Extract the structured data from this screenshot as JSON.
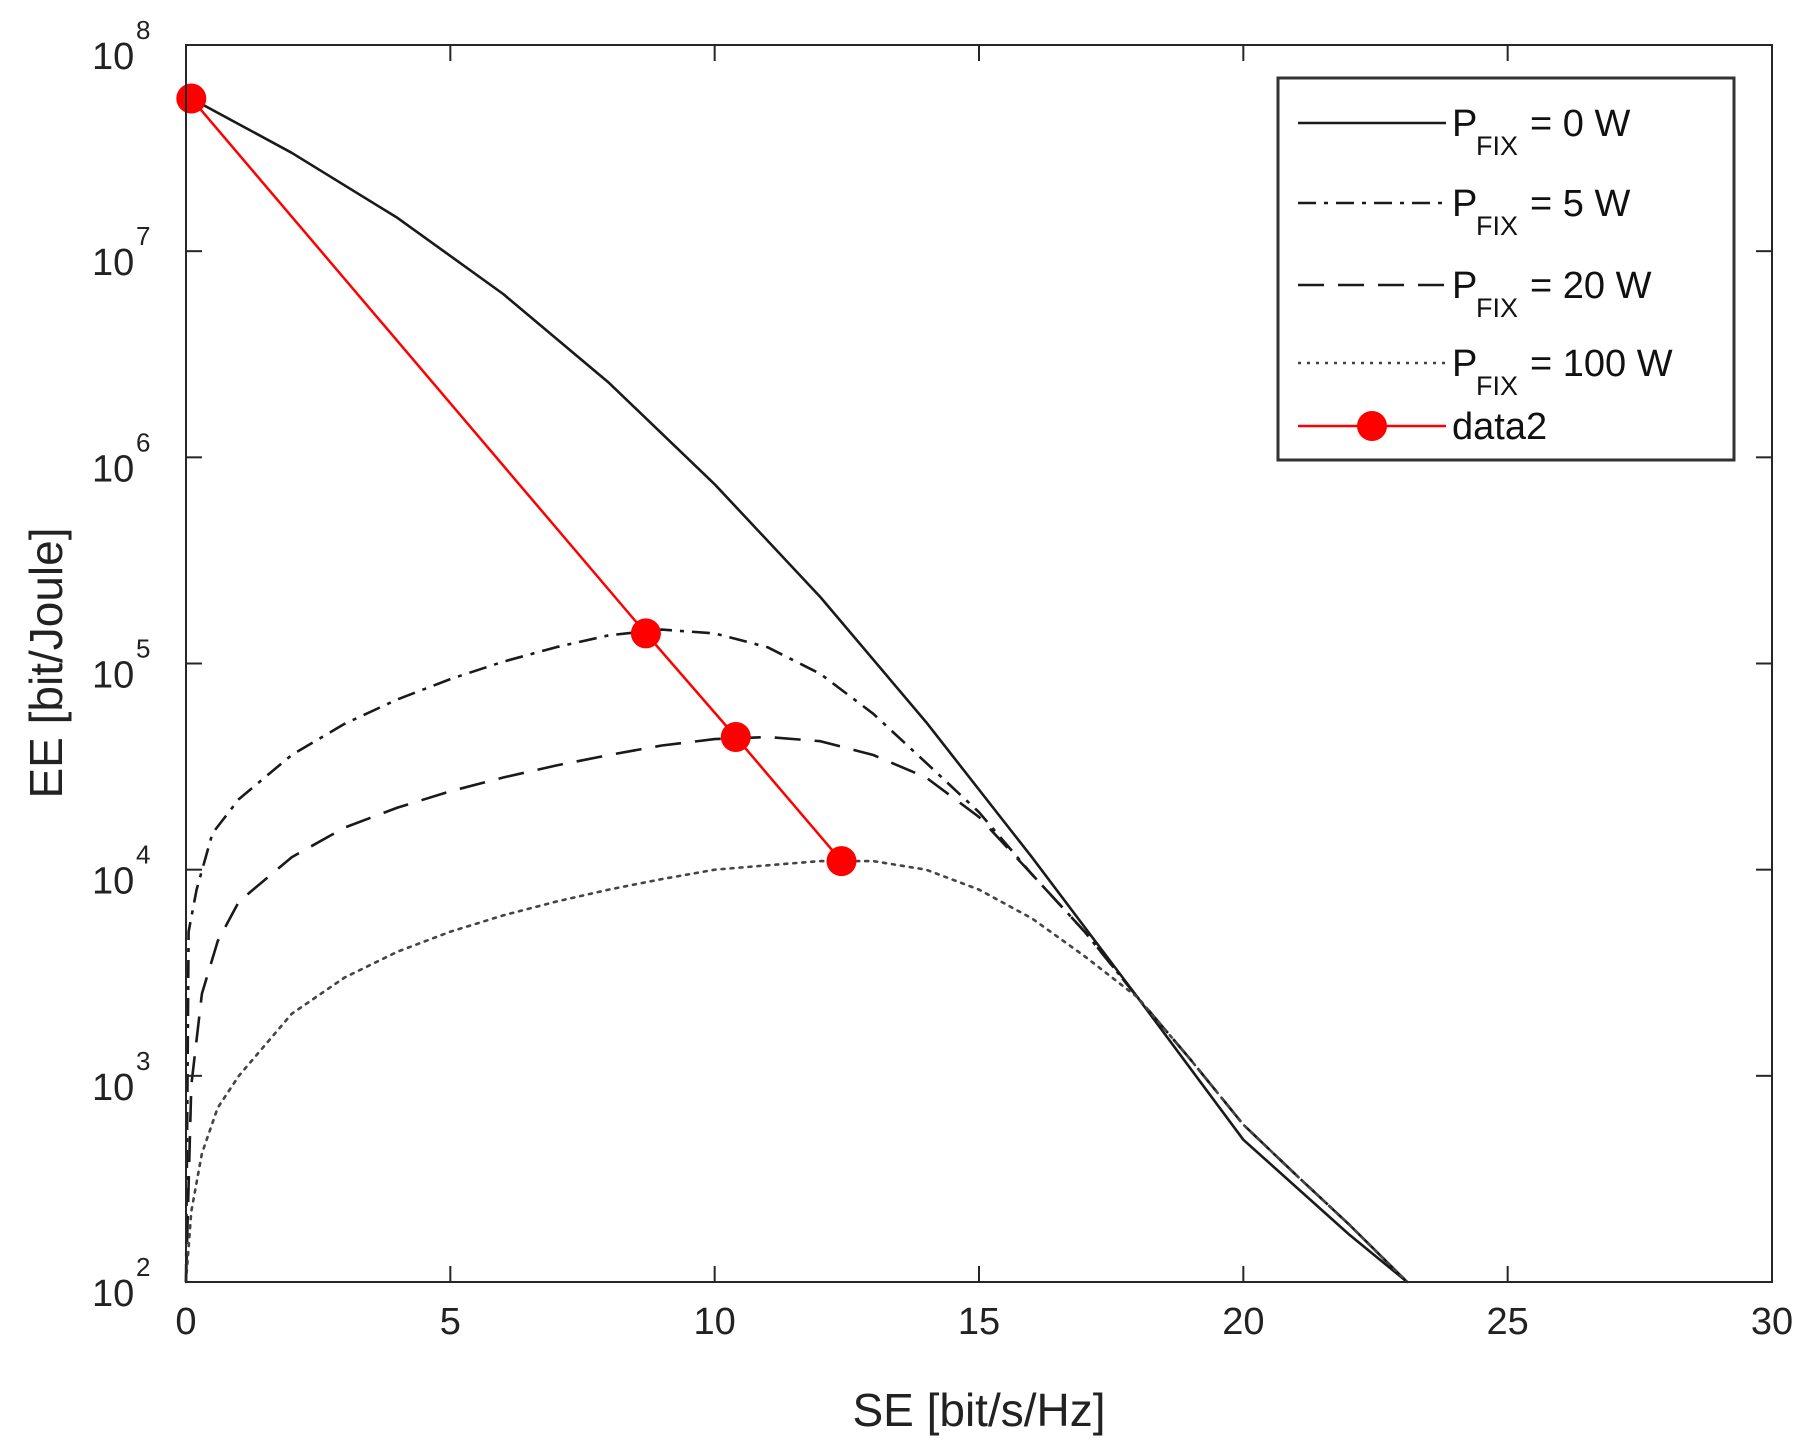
{
  "chart_data": {
    "type": "line",
    "title": "",
    "xlabel": "SE [bit/s/Hz]",
    "ylabel": "EE [bit/Joule]",
    "xlim": [
      0,
      30
    ],
    "ylim": [
      100,
      100000000
    ],
    "yscale": "log",
    "x_ticks": [
      0,
      5,
      10,
      15,
      20,
      25,
      30
    ],
    "y_ticks": [
      {
        "value": 100,
        "base": "10",
        "exp": "2"
      },
      {
        "value": 1000,
        "base": "10",
        "exp": "3"
      },
      {
        "value": 10000,
        "base": "10",
        "exp": "4"
      },
      {
        "value": 100000,
        "base": "10",
        "exp": "5"
      },
      {
        "value": 1000000,
        "base": "10",
        "exp": "6"
      },
      {
        "value": 10000000,
        "base": "10",
        "exp": "7"
      },
      {
        "value": 100000000,
        "base": "10",
        "exp": "8"
      }
    ],
    "grid": false,
    "legend_position": "top-right",
    "series": [
      {
        "name": "P_FIX = 0 W",
        "legend": {
          "main": "P",
          "sub": "FIX",
          "rest": " = 0 W"
        },
        "color": "#1a1a1a",
        "style": "solid",
        "x": [
          0.1,
          2,
          4,
          6,
          8,
          10,
          12,
          14,
          16,
          18,
          20,
          22,
          23.1
        ],
        "y": [
          55000000,
          30000000,
          14500000,
          6200000,
          2300000,
          740000,
          210000,
          52000,
          11500,
          2400,
          490,
          170,
          100
        ]
      },
      {
        "name": "P_FIX = 5 W",
        "legend": {
          "main": "P",
          "sub": "FIX",
          "rest": " = 5 W"
        },
        "color": "#1a1a1a",
        "style": "dashdot",
        "x": [
          0,
          0.05,
          0.2,
          0.5,
          1,
          2,
          3,
          4,
          5,
          6,
          7,
          8,
          9,
          10,
          11,
          12,
          13,
          14,
          15,
          16,
          17,
          18,
          19,
          20,
          21,
          22,
          23.1
        ],
        "y": [
          100,
          5000,
          8000,
          15000,
          22000,
          36000,
          51000,
          67000,
          84000,
          102000,
          120000,
          137000,
          146000,
          140000,
          120000,
          89000,
          57000,
          33000,
          19000,
          9500,
          5000,
          2400,
          1200,
          580,
          330,
          190,
          100
        ]
      },
      {
        "name": "P_FIX = 20 W",
        "legend": {
          "main": "P",
          "sub": "FIX",
          "rest": " = 20 W"
        },
        "color": "#1a1a1a",
        "style": "dashed",
        "x": [
          0,
          0.1,
          0.3,
          0.6,
          1,
          2,
          3,
          4,
          5,
          6,
          7,
          8,
          9,
          10,
          11,
          12,
          13,
          14,
          15,
          16,
          17,
          18,
          19,
          20,
          21,
          22,
          23.1
        ],
        "y": [
          100,
          900,
          2500,
          4500,
          7000,
          11500,
          16000,
          20000,
          24000,
          28000,
          32000,
          36000,
          40000,
          43000,
          44000,
          42000,
          36000,
          28000,
          18000,
          9500,
          5000,
          2400,
          1200,
          580,
          330,
          190,
          100
        ]
      },
      {
        "name": "P_FIX = 100 W",
        "legend": {
          "main": "P",
          "sub": "FIX",
          "rest": " = 100 W"
        },
        "color": "#444444",
        "style": "dotted",
        "x": [
          0,
          0.1,
          0.3,
          0.6,
          1,
          2,
          3,
          4,
          5,
          6,
          7,
          8,
          9,
          10,
          11,
          12,
          13,
          14,
          15,
          16,
          17,
          18,
          19,
          20,
          21,
          22,
          23.1
        ],
        "y": [
          100,
          220,
          420,
          700,
          1000,
          2000,
          3000,
          4000,
          5000,
          6000,
          7000,
          8000,
          9000,
          10000,
          10500,
          11000,
          11000,
          10000,
          8000,
          5800,
          3800,
          2400,
          1200,
          580,
          330,
          190,
          100
        ]
      },
      {
        "name": "data2",
        "legend": {
          "main": "data2",
          "sub": "",
          "rest": ""
        },
        "color": "#ff0000",
        "style": "solid",
        "markers": true,
        "x": [
          0.1,
          8.7,
          10.4,
          12.4
        ],
        "y": [
          55000000,
          140000,
          44000,
          11000
        ]
      }
    ]
  }
}
